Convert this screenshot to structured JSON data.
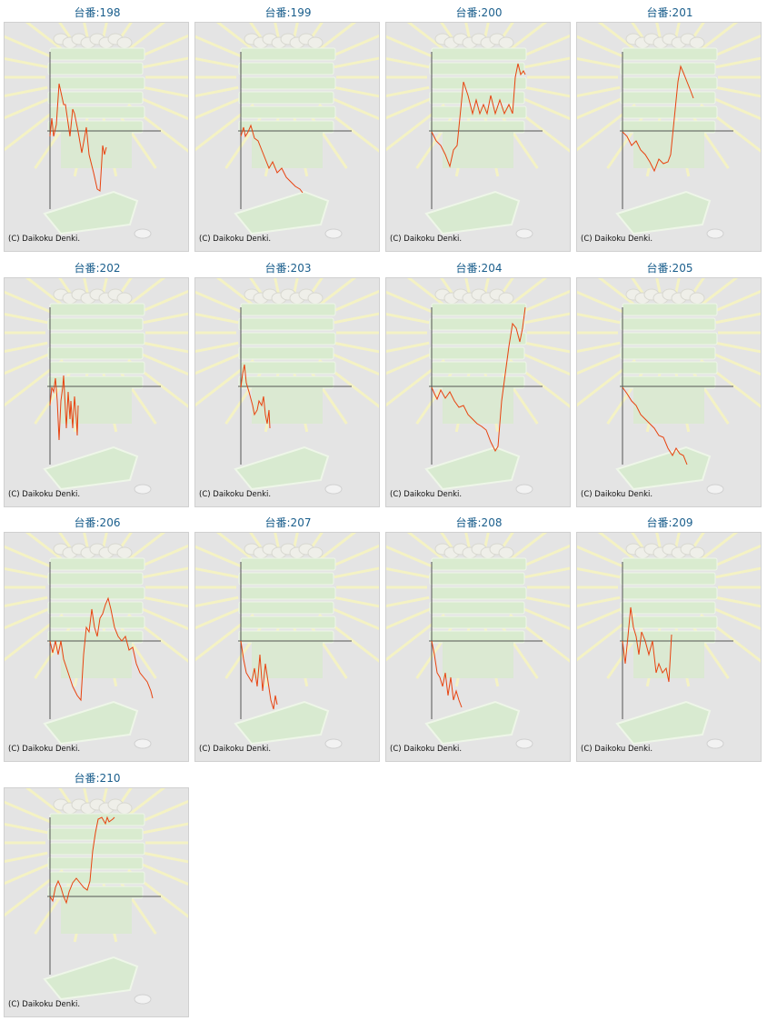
{
  "title_prefix": "台番:",
  "copyright": "(C) Daikoku Denki.",
  "colors": {
    "line": "#e8420f",
    "axis": "#555555",
    "title": "#1a5e8c",
    "background": "#e4e4e4"
  },
  "chart_data": [
    {
      "type": "line",
      "title": "台番:198",
      "ylim": [
        -87,
        87
      ],
      "points": [
        [
          0,
          -6
        ],
        [
          2,
          14
        ],
        [
          4,
          -6
        ],
        [
          7,
          7
        ],
        [
          10,
          52
        ],
        [
          15,
          29
        ],
        [
          17,
          29
        ],
        [
          22,
          -6
        ],
        [
          25,
          24
        ],
        [
          27,
          19
        ],
        [
          31,
          -1
        ],
        [
          35,
          -24
        ],
        [
          40,
          4
        ],
        [
          43,
          -26
        ],
        [
          48,
          -46
        ],
        [
          52,
          -64
        ],
        [
          55,
          -66
        ],
        [
          58,
          -16
        ],
        [
          60,
          -26
        ],
        [
          62,
          -18
        ]
      ]
    },
    {
      "type": "line",
      "title": "台番:199",
      "ylim": [
        -87,
        87
      ],
      "points": [
        [
          0,
          -6
        ],
        [
          3,
          4
        ],
        [
          5,
          -6
        ],
        [
          8,
          -1
        ],
        [
          11,
          6
        ],
        [
          15,
          -8
        ],
        [
          19,
          -11
        ],
        [
          23,
          -21
        ],
        [
          27,
          -31
        ],
        [
          31,
          -41
        ],
        [
          35,
          -34
        ],
        [
          40,
          -46
        ],
        [
          45,
          -41
        ],
        [
          50,
          -51
        ],
        [
          55,
          -56
        ],
        [
          60,
          -61
        ],
        [
          65,
          -64
        ],
        [
          68,
          -68
        ]
      ]
    },
    {
      "type": "line",
      "title": "台番:200",
      "ylim": [
        -87,
        87
      ],
      "points": [
        [
          0,
          -1
        ],
        [
          5,
          -11
        ],
        [
          10,
          -16
        ],
        [
          15,
          -26
        ],
        [
          20,
          -39
        ],
        [
          24,
          -21
        ],
        [
          28,
          -16
        ],
        [
          32,
          24
        ],
        [
          35,
          54
        ],
        [
          40,
          39
        ],
        [
          45,
          19
        ],
        [
          49,
          34
        ],
        [
          53,
          19
        ],
        [
          57,
          29
        ],
        [
          61,
          19
        ],
        [
          65,
          39
        ],
        [
          70,
          19
        ],
        [
          75,
          34
        ],
        [
          80,
          19
        ],
        [
          85,
          29
        ],
        [
          89,
          19
        ],
        [
          92,
          59
        ],
        [
          95,
          74
        ],
        [
          98,
          62
        ],
        [
          101,
          66
        ],
        [
          103,
          62
        ]
      ]
    },
    {
      "type": "line",
      "title": "台番:201",
      "ylim": [
        -87,
        87
      ],
      "points": [
        [
          0,
          -1
        ],
        [
          5,
          -6
        ],
        [
          10,
          -16
        ],
        [
          15,
          -11
        ],
        [
          20,
          -21
        ],
        [
          25,
          -26
        ],
        [
          30,
          -34
        ],
        [
          35,
          -44
        ],
        [
          40,
          -31
        ],
        [
          45,
          -36
        ],
        [
          50,
          -34
        ],
        [
          53,
          -26
        ],
        [
          57,
          14
        ],
        [
          61,
          54
        ],
        [
          64,
          71
        ],
        [
          67,
          64
        ],
        [
          71,
          54
        ],
        [
          75,
          44
        ],
        [
          78,
          36
        ]
      ]
    },
    {
      "type": "line",
      "title": "台番:202",
      "ylim": [
        -87,
        87
      ],
      "points": [
        [
          0,
          -21
        ],
        [
          2,
          -1
        ],
        [
          4,
          -6
        ],
        [
          6,
          9
        ],
        [
          8,
          -16
        ],
        [
          10,
          -59
        ],
        [
          12,
          -16
        ],
        [
          14,
          -1
        ],
        [
          15,
          12
        ],
        [
          17,
          -26
        ],
        [
          18,
          -46
        ],
        [
          20,
          -6
        ],
        [
          22,
          -36
        ],
        [
          23,
          -16
        ],
        [
          25,
          -46
        ],
        [
          27,
          -11
        ],
        [
          29,
          -36
        ],
        [
          30,
          -54
        ],
        [
          31,
          -21
        ]
      ]
    },
    {
      "type": "line",
      "title": "台番:203",
      "ylim": [
        -87,
        87
      ],
      "points": [
        [
          0,
          -1
        ],
        [
          2,
          14
        ],
        [
          4,
          24
        ],
        [
          6,
          4
        ],
        [
          9,
          -6
        ],
        [
          13,
          -21
        ],
        [
          15,
          -31
        ],
        [
          18,
          -26
        ],
        [
          20,
          -16
        ],
        [
          23,
          -21
        ],
        [
          25,
          -11
        ],
        [
          27,
          -31
        ],
        [
          29,
          -41
        ],
        [
          31,
          -26
        ],
        [
          32,
          -46
        ]
      ]
    },
    {
      "type": "line",
      "title": "台番:204",
      "ylim": [
        -87,
        87
      ],
      "points": [
        [
          0,
          -1
        ],
        [
          3,
          -8
        ],
        [
          6,
          -14
        ],
        [
          10,
          -4
        ],
        [
          15,
          -13
        ],
        [
          20,
          -6
        ],
        [
          25,
          -16
        ],
        [
          30,
          -23
        ],
        [
          35,
          -21
        ],
        [
          40,
          -31
        ],
        [
          45,
          -36
        ],
        [
          50,
          -41
        ],
        [
          55,
          -44
        ],
        [
          60,
          -48
        ],
        [
          65,
          -61
        ],
        [
          70,
          -71
        ],
        [
          73,
          -66
        ],
        [
          77,
          -16
        ],
        [
          81,
          14
        ],
        [
          85,
          44
        ],
        [
          89,
          69
        ],
        [
          93,
          64
        ],
        [
          97,
          49
        ],
        [
          100,
          64
        ],
        [
          103,
          87
        ]
      ]
    },
    {
      "type": "line",
      "title": "台番:205",
      "ylim": [
        -87,
        87
      ],
      "points": [
        [
          0,
          -1
        ],
        [
          5,
          -8
        ],
        [
          10,
          -16
        ],
        [
          15,
          -21
        ],
        [
          20,
          -31
        ],
        [
          25,
          -36
        ],
        [
          30,
          -41
        ],
        [
          35,
          -46
        ],
        [
          40,
          -54
        ],
        [
          45,
          -56
        ],
        [
          50,
          -68
        ],
        [
          55,
          -76
        ],
        [
          59,
          -68
        ],
        [
          63,
          -74
        ],
        [
          67,
          -76
        ],
        [
          71,
          -86
        ]
      ]
    },
    {
      "type": "line",
      "title": "台番:206",
      "ylim": [
        -87,
        87
      ],
      "points": [
        [
          0,
          0
        ],
        [
          3,
          -13
        ],
        [
          6,
          0
        ],
        [
          9,
          -15
        ],
        [
          12,
          0
        ],
        [
          15,
          -20
        ],
        [
          20,
          -35
        ],
        [
          25,
          -50
        ],
        [
          30,
          -60
        ],
        [
          34,
          -65
        ],
        [
          37,
          -15
        ],
        [
          40,
          15
        ],
        [
          43,
          10
        ],
        [
          46,
          35
        ],
        [
          49,
          15
        ],
        [
          52,
          5
        ],
        [
          55,
          25
        ],
        [
          58,
          30
        ],
        [
          61,
          40
        ],
        [
          64,
          47
        ],
        [
          67,
          35
        ],
        [
          71,
          15
        ],
        [
          75,
          5
        ],
        [
          79,
          0
        ],
        [
          83,
          5
        ],
        [
          87,
          -10
        ],
        [
          91,
          -7
        ],
        [
          95,
          -25
        ],
        [
          99,
          -35
        ],
        [
          103,
          -40
        ],
        [
          107,
          -45
        ],
        [
          111,
          -55
        ],
        [
          113,
          -63
        ]
      ]
    },
    {
      "type": "line",
      "title": "台番:207",
      "ylim": [
        -87,
        87
      ],
      "points": [
        [
          0,
          0
        ],
        [
          3,
          -20
        ],
        [
          6,
          -35
        ],
        [
          9,
          -40
        ],
        [
          12,
          -45
        ],
        [
          15,
          -30
        ],
        [
          18,
          -50
        ],
        [
          21,
          -15
        ],
        [
          24,
          -55
        ],
        [
          27,
          -25
        ],
        [
          30,
          -45
        ],
        [
          33,
          -65
        ],
        [
          36,
          -75
        ],
        [
          38,
          -60
        ],
        [
          40,
          -70
        ]
      ]
    },
    {
      "type": "line",
      "title": "台番:208",
      "ylim": [
        -87,
        87
      ],
      "points": [
        [
          0,
          0
        ],
        [
          3,
          -15
        ],
        [
          6,
          -35
        ],
        [
          9,
          -40
        ],
        [
          12,
          -50
        ],
        [
          15,
          -35
        ],
        [
          18,
          -60
        ],
        [
          21,
          -40
        ],
        [
          24,
          -65
        ],
        [
          27,
          -55
        ],
        [
          30,
          -65
        ],
        [
          33,
          -73
        ]
      ]
    },
    {
      "type": "line",
      "title": "台番:209",
      "ylim": [
        -87,
        87
      ],
      "points": [
        [
          0,
          0
        ],
        [
          3,
          -25
        ],
        [
          6,
          5
        ],
        [
          9,
          37
        ],
        [
          12,
          15
        ],
        [
          15,
          5
        ],
        [
          18,
          -15
        ],
        [
          21,
          10
        ],
        [
          25,
          0
        ],
        [
          29,
          -15
        ],
        [
          33,
          0
        ],
        [
          37,
          -35
        ],
        [
          40,
          -25
        ],
        [
          44,
          -35
        ],
        [
          48,
          -30
        ],
        [
          51,
          -45
        ],
        [
          54,
          7
        ]
      ]
    },
    {
      "type": "line",
      "title": "台番:210",
      "ylim": [
        -87,
        87
      ],
      "points": [
        [
          0,
          0
        ],
        [
          3,
          -5
        ],
        [
          6,
          10
        ],
        [
          9,
          17
        ],
        [
          12,
          10
        ],
        [
          15,
          0
        ],
        [
          18,
          -7
        ],
        [
          21,
          5
        ],
        [
          25,
          15
        ],
        [
          29,
          20
        ],
        [
          33,
          15
        ],
        [
          37,
          10
        ],
        [
          41,
          7
        ],
        [
          44,
          17
        ],
        [
          47,
          50
        ],
        [
          50,
          70
        ],
        [
          53,
          85
        ],
        [
          57,
          87
        ],
        [
          61,
          80
        ],
        [
          63,
          87
        ],
        [
          65,
          82
        ],
        [
          69,
          85
        ],
        [
          71,
          87
        ]
      ]
    }
  ]
}
